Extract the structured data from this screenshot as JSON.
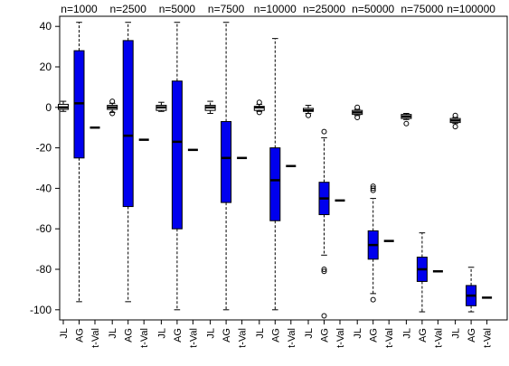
{
  "chart_data": {
    "type": "box",
    "title": "",
    "xlabel": "",
    "ylabel": "",
    "ylim": [
      -105,
      45
    ],
    "yticks": [
      40,
      20,
      0,
      -20,
      -40,
      -60,
      -80,
      -100
    ],
    "grid": false,
    "groups": [
      "n=1000",
      "n=2500",
      "n=5000",
      "n=7500",
      "n=10000",
      "n=25000",
      "n=50000",
      "n=75000",
      "n=100000"
    ],
    "methods": [
      "JL",
      "AG",
      "t-Val"
    ],
    "box_color": "#0000ee",
    "boxes": [
      [
        {
          "method": "JL",
          "min": -2,
          "q1": -1,
          "median": 0,
          "q3": 1.5,
          "max": 3,
          "outliers": []
        },
        {
          "method": "AG",
          "min": -96,
          "q1": -25,
          "median": 2,
          "q3": 28,
          "max": 42,
          "outliers": []
        },
        {
          "method": "t-Val",
          "median": -10
        }
      ],
      [
        {
          "method": "JL",
          "min": -2.5,
          "q1": -1,
          "median": 0,
          "q3": 1,
          "max": 2,
          "outliers": [
            3,
            -3
          ]
        },
        {
          "method": "AG",
          "min": -96,
          "q1": -49,
          "median": -14,
          "q3": 33,
          "max": 42,
          "outliers": []
        },
        {
          "method": "t-Val",
          "median": -16
        }
      ],
      [
        {
          "method": "JL",
          "min": -2,
          "q1": -1.5,
          "median": 0,
          "q3": 1,
          "max": 2.5,
          "outliers": []
        },
        {
          "method": "AG",
          "min": -100,
          "q1": -60,
          "median": -17,
          "q3": 13,
          "max": 42,
          "outliers": []
        },
        {
          "method": "t-Val",
          "median": -21
        }
      ],
      [
        {
          "method": "JL",
          "min": -3,
          "q1": -1.5,
          "median": 0,
          "q3": 1,
          "max": 3,
          "outliers": []
        },
        {
          "method": "AG",
          "min": -100,
          "q1": -47,
          "median": -25,
          "q3": -7,
          "max": 42,
          "outliers": []
        },
        {
          "method": "t-Val",
          "median": -25
        }
      ],
      [
        {
          "method": "JL",
          "min": -2,
          "q1": -1.5,
          "median": 0,
          "q3": 0.5,
          "max": 1.5,
          "outliers": [
            2.5,
            -2.5
          ]
        },
        {
          "method": "AG",
          "min": -100,
          "q1": -56,
          "median": -36,
          "q3": -20,
          "max": 34,
          "outliers": []
        },
        {
          "method": "t-Val",
          "median": -29
        }
      ],
      [
        {
          "method": "JL",
          "min": -3,
          "q1": -2,
          "median": -1.5,
          "q3": -0.5,
          "max": 1,
          "outliers": [
            -4
          ]
        },
        {
          "method": "AG",
          "min": -73,
          "q1": -53,
          "median": -45,
          "q3": -37,
          "max": -15,
          "outliers": [
            -12,
            -80,
            -81,
            -103
          ]
        },
        {
          "method": "t-Val",
          "median": -46
        }
      ],
      [
        {
          "method": "JL",
          "min": -4,
          "q1": -3.5,
          "median": -2.5,
          "q3": -1.5,
          "max": -1,
          "outliers": [
            0,
            -5
          ]
        },
        {
          "method": "AG",
          "min": -92,
          "q1": -75,
          "median": -68,
          "q3": -61,
          "max": -45,
          "outliers": [
            -39,
            -40,
            -41,
            -95
          ]
        },
        {
          "method": "t-Val",
          "median": -66
        }
      ],
      [
        {
          "method": "JL",
          "min": -6,
          "q1": -5.5,
          "median": -4.5,
          "q3": -3.5,
          "max": -3,
          "outliers": [
            -8
          ]
        },
        {
          "method": "AG",
          "min": -101,
          "q1": -86,
          "median": -80,
          "q3": -74,
          "max": -62,
          "outliers": []
        },
        {
          "method": "t-Val",
          "median": -81
        }
      ],
      [
        {
          "method": "JL",
          "min": -8,
          "q1": -7.5,
          "median": -6.5,
          "q3": -5.5,
          "max": -5,
          "outliers": [
            -4,
            -9.5
          ]
        },
        {
          "method": "AG",
          "min": -101,
          "q1": -98,
          "median": -93,
          "q3": -88,
          "max": -79,
          "outliers": []
        },
        {
          "method": "t-Val",
          "median": -94
        }
      ]
    ]
  }
}
